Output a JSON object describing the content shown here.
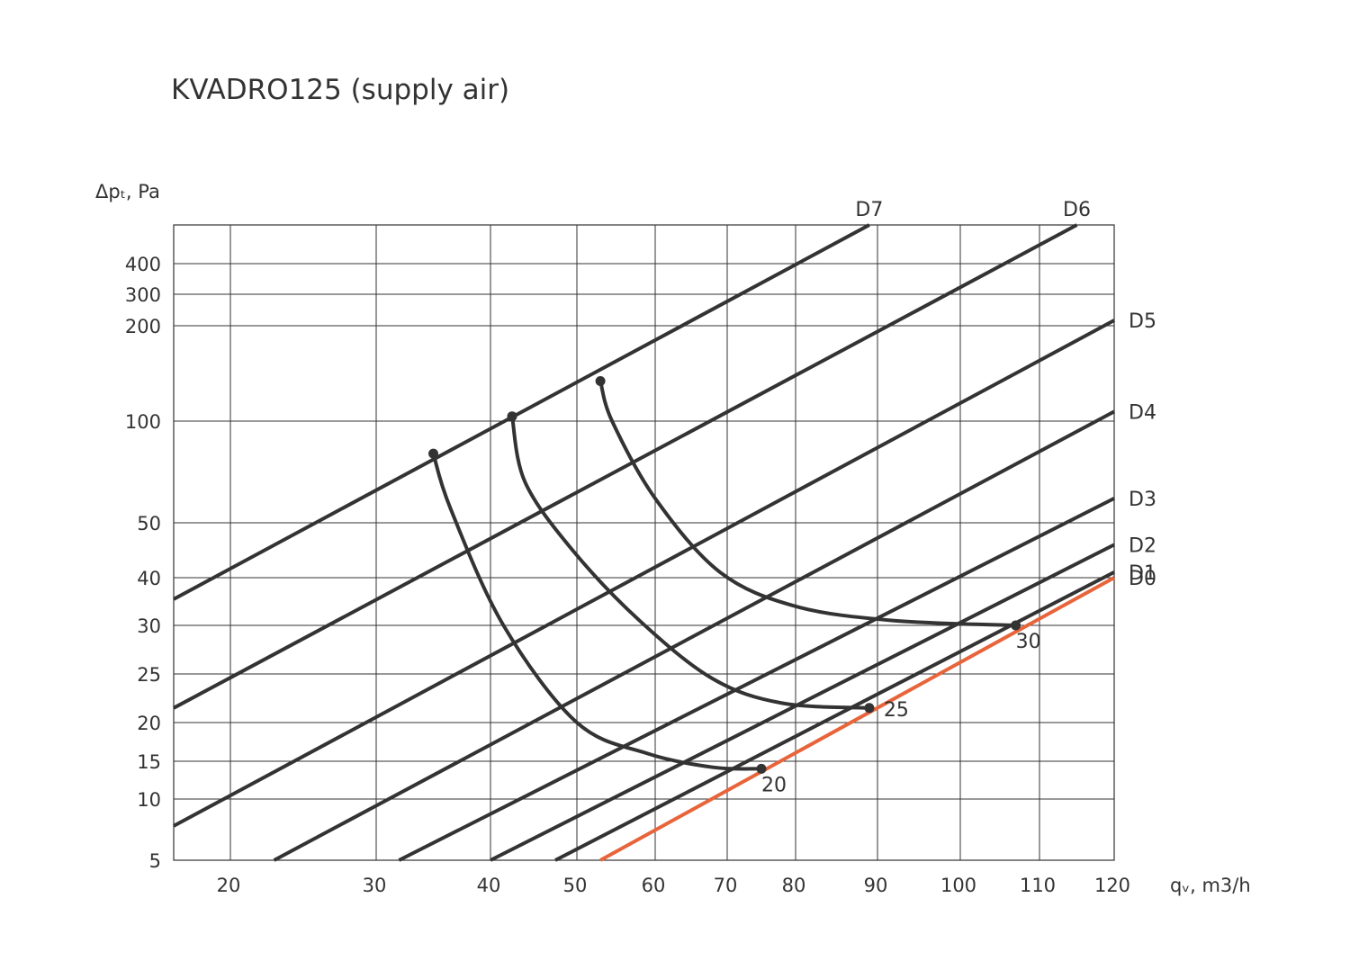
{
  "chart_data": {
    "type": "line",
    "title": "KVADRO125 (supply air)",
    "xlabel": "qᵥ, m3/h",
    "ylabel": "Δpₜ, Pa",
    "x_ticks": [
      20,
      30,
      40,
      50,
      60,
      70,
      80,
      90,
      100,
      110,
      120
    ],
    "y_ticks": [
      5,
      10,
      15,
      20,
      25,
      30,
      40,
      50,
      100,
      200,
      300,
      400
    ],
    "grid": true,
    "colors": {
      "default": "#333333",
      "highlight": "#e8643a",
      "grid": "#333333"
    },
    "series": [
      {
        "name": "D7",
        "color": "#333333",
        "points": [
          [
            15.5,
            35.5
          ],
          [
            89.0,
            520
          ]
        ]
      },
      {
        "name": "D6",
        "color": "#333333",
        "points": [
          [
            15.5,
            21.5
          ],
          [
            115.0,
            520
          ]
        ]
      },
      {
        "name": "D5",
        "color": "#333333",
        "points": [
          [
            15.5,
            7.8
          ],
          [
            120.0,
            217
          ]
        ]
      },
      {
        "name": "D4",
        "color": "#333333",
        "points": [
          [
            23.0,
            5.0
          ],
          [
            120.0,
            110
          ]
        ]
      },
      {
        "name": "D3",
        "color": "#333333",
        "points": [
          [
            32.0,
            5.0
          ],
          [
            120.0,
            62
          ]
        ]
      },
      {
        "name": "D2",
        "color": "#333333",
        "points": [
          [
            40.0,
            5.0
          ],
          [
            120.0,
            46
          ]
        ]
      },
      {
        "name": "D1",
        "color": "#333333",
        "points": [
          [
            47.5,
            5.0
          ],
          [
            120.0,
            41
          ]
        ]
      },
      {
        "name": "D0",
        "color": "#e8643a",
        "points": [
          [
            53.0,
            5.0
          ],
          [
            120.0,
            40
          ]
        ]
      }
    ],
    "curves": [
      {
        "label": "20",
        "points": [
          [
            35.0,
            84
          ],
          [
            36.5,
            57
          ],
          [
            41.5,
            30
          ],
          [
            50.0,
            20
          ],
          [
            59.0,
            16
          ],
          [
            68.0,
            14.2
          ],
          [
            75.0,
            14
          ]
        ]
      },
      {
        "label": "25",
        "points": [
          [
            42.5,
            105
          ],
          [
            44.0,
            70
          ],
          [
            49.5,
            45
          ],
          [
            58.0,
            31
          ],
          [
            68.0,
            24.5
          ],
          [
            78.0,
            22.0
          ],
          [
            89.0,
            21.5
          ]
        ]
      },
      {
        "label": "30",
        "points": [
          [
            53.0,
            142
          ],
          [
            54.5,
            100
          ],
          [
            60.0,
            62
          ],
          [
            69.0,
            41
          ],
          [
            80.0,
            34
          ],
          [
            92.0,
            31.0
          ],
          [
            107.0,
            30.0
          ]
        ]
      }
    ],
    "markers": [
      {
        "x": 35.0,
        "y": 84
      },
      {
        "x": 42.5,
        "y": 105
      },
      {
        "x": 53.0,
        "y": 142
      },
      {
        "x": 75.0,
        "y": 14
      },
      {
        "x": 89.0,
        "y": 21.5
      },
      {
        "x": 107.0,
        "y": 30.0
      }
    ]
  }
}
